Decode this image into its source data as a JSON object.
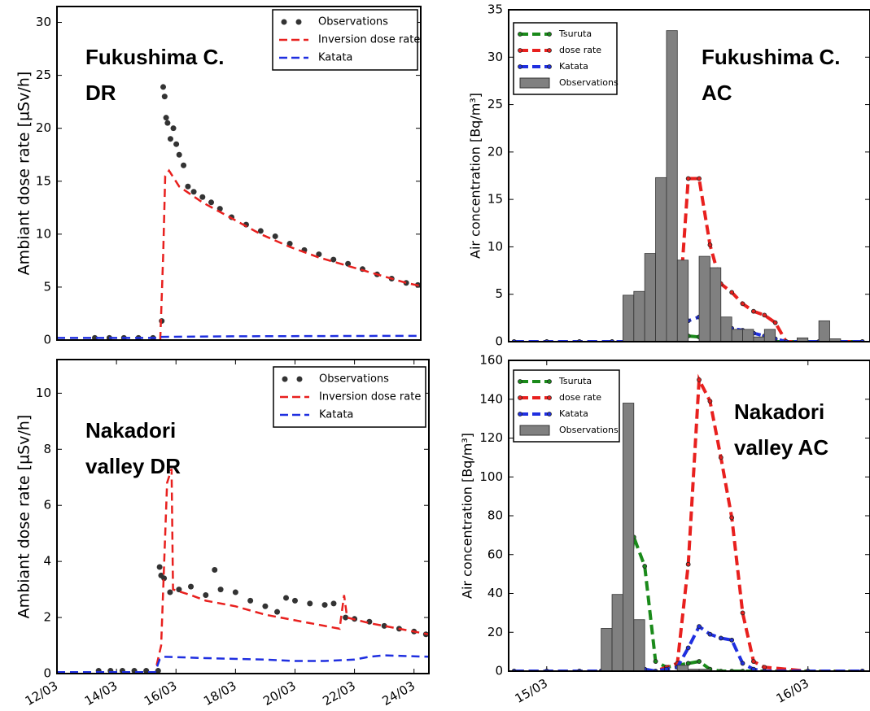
{
  "chart_data": [
    {
      "type": "line",
      "annotation": [
        "Fukushima C.",
        "DR"
      ],
      "y_label": "Ambiant dose rate [µSv/h]",
      "xlim": [
        12,
        24.5
      ],
      "ylim": [
        0,
        31.5
      ],
      "yticks": [
        0,
        5,
        10,
        15,
        20,
        25,
        30
      ],
      "legend": "upper right",
      "series": [
        {
          "name": "Observations",
          "kind": "scatter",
          "color": "#333333",
          "x": [
            13.3,
            13.8,
            14.3,
            14.8,
            15.3,
            15.6,
            15.65,
            15.7,
            15.75,
            15.8,
            15.9,
            16.0,
            16.1,
            16.2,
            16.35,
            16.5,
            16.7,
            17.0,
            17.3,
            17.6,
            18.0,
            18.5,
            19.0,
            19.5,
            20.0,
            20.5,
            21.0,
            21.5,
            22.0,
            22.5,
            23.0,
            23.5,
            24.0,
            24.4
          ],
          "values": [
            0.2,
            0.2,
            0.2,
            0.2,
            0.2,
            1.8,
            23.9,
            23.0,
            21.0,
            20.5,
            19.0,
            20.0,
            18.5,
            17.5,
            16.5,
            14.5,
            14.0,
            13.5,
            13.0,
            12.4,
            11.6,
            10.9,
            10.3,
            9.8,
            9.1,
            8.5,
            8.1,
            7.6,
            7.2,
            6.7,
            6.2,
            5.8,
            5.4,
            5.2
          ]
        },
        {
          "name": "Inversion dose rate",
          "kind": "line",
          "color": "#e8201e",
          "x": [
            15.55,
            15.65,
            15.72,
            15.85,
            16.2,
            17,
            18,
            19,
            20,
            21,
            22,
            23,
            24,
            24.5
          ],
          "values": [
            0,
            8,
            15.5,
            16,
            14.5,
            13,
            11.5,
            10,
            8.8,
            7.8,
            7,
            6.2,
            5.4,
            5.1
          ]
        },
        {
          "name": "Katata",
          "kind": "line",
          "color": "#1f2fe0",
          "x": [
            12,
            15.5,
            15.6,
            18,
            24.5
          ],
          "values": [
            0.2,
            0.2,
            0.3,
            0.35,
            0.4
          ]
        }
      ]
    },
    {
      "type": "bar",
      "annotation": [
        "Fukushima C.",
        "AC"
      ],
      "y_label": "Air concentration [Bq/m³]",
      "xlim": [
        -3.5,
        29.7
      ],
      "ylim": [
        0,
        35
      ],
      "yticks": [
        0,
        5,
        10,
        15,
        20,
        25,
        30,
        35
      ],
      "legend": "upper left",
      "series": [
        {
          "name": "Tsuruta",
          "kind": "line",
          "markers": true,
          "color": "#1a8a1a",
          "x": [
            -3,
            0,
            3,
            6,
            9,
            10,
            11,
            12,
            13,
            14,
            15,
            16,
            17,
            18,
            19,
            20,
            21,
            22,
            25,
            29
          ],
          "values": [
            0,
            0,
            0,
            0,
            0,
            0,
            0.1,
            0.5,
            0.6,
            0.5,
            0.4,
            0.5,
            0.4,
            0.3,
            0.2,
            0.1,
            0,
            0,
            0,
            0
          ]
        },
        {
          "name": "dose rate",
          "kind": "line",
          "markers": true,
          "color": "#e8201e",
          "x": [
            -3,
            0,
            3,
            6,
            9,
            10,
            11,
            12,
            13,
            14,
            15,
            16,
            17,
            18,
            19,
            20,
            21,
            22,
            25,
            29
          ],
          "values": [
            0,
            0,
            0,
            0,
            0,
            0,
            0,
            0.5,
            17.2,
            17.2,
            10.2,
            6.1,
            5.2,
            4.0,
            3.2,
            2.8,
            2.0,
            0,
            0,
            0
          ]
        },
        {
          "name": "Katata",
          "kind": "line",
          "markers": true,
          "color": "#1f2fe0",
          "x": [
            -3,
            0,
            3,
            6,
            9,
            10,
            11,
            12,
            13,
            14,
            15,
            16,
            17,
            18,
            19,
            20,
            21,
            22,
            25,
            29
          ],
          "values": [
            0,
            0,
            0,
            0,
            0,
            0,
            0,
            1.2,
            2.2,
            2.6,
            2.0,
            1.5,
            1.4,
            1.2,
            0.9,
            0.6,
            0.3,
            0,
            0,
            0
          ]
        },
        {
          "name": "Observations",
          "kind": "bar",
          "color": "#808080",
          "bins": [
            7,
            8,
            9,
            10,
            11,
            12,
            13,
            14,
            15,
            16,
            17,
            18,
            19,
            20,
            21,
            22,
            23,
            24,
            25,
            26,
            27
          ],
          "values": [
            4.9,
            5.3,
            9.3,
            17.3,
            32.8,
            8.6,
            0,
            9.0,
            7.8,
            2.6,
            1.3,
            1.3,
            0.5,
            1.3,
            0,
            0,
            0.4,
            0,
            2.2,
            0.3
          ]
        }
      ]
    },
    {
      "type": "line",
      "annotation": [
        "Nakadori",
        "valley DR"
      ],
      "y_label": "Ambiant dose rate [µSv/h]",
      "xlim": [
        12,
        24.5
      ],
      "ylim": [
        0,
        11.2
      ],
      "yticks": [
        0,
        2,
        4,
        6,
        8,
        10
      ],
      "legend": "upper right",
      "xticks": [
        {
          "value": 12,
          "label": "12/03"
        },
        {
          "value": 14,
          "label": "14/03"
        },
        {
          "value": 16,
          "label": "16/03"
        },
        {
          "value": 18,
          "label": "18/03"
        },
        {
          "value": 20,
          "label": "20/03"
        },
        {
          "value": 22,
          "label": "22/03"
        },
        {
          "value": 24,
          "label": "24/03"
        }
      ],
      "series": [
        {
          "name": "Observations",
          "kind": "scatter",
          "color": "#333333",
          "x": [
            13.4,
            13.8,
            14.2,
            14.6,
            15.0,
            15.4,
            15.45,
            15.5,
            15.6,
            15.8,
            16.1,
            16.5,
            17.0,
            17.3,
            17.5,
            18.0,
            18.5,
            19.0,
            19.4,
            19.7,
            20.0,
            20.5,
            21.0,
            21.3,
            21.7,
            22.0,
            22.5,
            23.0,
            23.5,
            24.0,
            24.4
          ],
          "values": [
            0.1,
            0.1,
            0.1,
            0.1,
            0.1,
            0.1,
            3.8,
            3.5,
            3.4,
            2.9,
            3.0,
            3.1,
            2.8,
            3.7,
            3.0,
            2.9,
            2.6,
            2.4,
            2.2,
            2.7,
            2.6,
            2.5,
            2.45,
            2.5,
            2.0,
            1.95,
            1.85,
            1.7,
            1.6,
            1.5,
            1.4
          ]
        },
        {
          "name": "Inversion dose rate",
          "kind": "line",
          "color": "#e8201e",
          "x": [
            15.35,
            15.5,
            15.7,
            15.85,
            15.9,
            16.5,
            17,
            18,
            19,
            20,
            21,
            21.5,
            21.65,
            21.75,
            22.5,
            23.5,
            24.5
          ],
          "values": [
            0.3,
            1.0,
            6.8,
            7.3,
            3.0,
            2.8,
            2.6,
            2.4,
            2.1,
            1.9,
            1.7,
            1.6,
            2.8,
            2.0,
            1.8,
            1.6,
            1.4
          ]
        },
        {
          "name": "Katata",
          "kind": "line",
          "color": "#1f2fe0",
          "x": [
            12,
            15.3,
            15.45,
            15.6,
            17,
            19,
            20,
            21,
            22,
            22.5,
            23,
            24.5
          ],
          "values": [
            0.05,
            0.05,
            0.5,
            0.6,
            0.55,
            0.5,
            0.45,
            0.45,
            0.5,
            0.6,
            0.65,
            0.6
          ]
        }
      ]
    },
    {
      "type": "bar",
      "annotation": [
        "Nakadori",
        "valley AC"
      ],
      "y_label": "Air concentration [Bq/m³]",
      "xlim": [
        -3.5,
        29.7
      ],
      "ylim": [
        0,
        160
      ],
      "yticks": [
        0,
        20,
        40,
        60,
        80,
        100,
        120,
        140,
        160
      ],
      "legend": "upper left",
      "xticks": [
        {
          "value": 0,
          "label": "15/03"
        },
        {
          "value": 24,
          "label": "16/03"
        }
      ],
      "series": [
        {
          "name": "Tsuruta",
          "kind": "line",
          "markers": true,
          "color": "#1a8a1a",
          "x": [
            -3,
            0,
            3,
            5,
            6,
            7,
            8,
            9,
            10,
            11,
            12,
            13,
            14,
            15,
            16,
            17,
            18,
            19,
            20,
            24,
            29
          ],
          "values": [
            0,
            0,
            0,
            0,
            1,
            20,
            69,
            54,
            5,
            2,
            3,
            4,
            5,
            1,
            0,
            0,
            0,
            0,
            0,
            0,
            0
          ]
        },
        {
          "name": "dose rate",
          "kind": "line",
          "markers": true,
          "color": "#e8201e",
          "x": [
            -3,
            0,
            3,
            5,
            6,
            7,
            8,
            9,
            10,
            11,
            12,
            13,
            14,
            15,
            16,
            17,
            18,
            19,
            20,
            24,
            29
          ],
          "values": [
            0,
            0,
            0,
            0,
            0,
            0,
            0,
            0,
            0,
            2,
            4,
            55,
            150,
            139,
            110,
            79,
            30,
            5,
            2,
            0,
            0
          ]
        },
        {
          "name": "Katata",
          "kind": "line",
          "markers": true,
          "color": "#1f2fe0",
          "x": [
            -3,
            0,
            3,
            5,
            6,
            7,
            8,
            9,
            10,
            11,
            12,
            13,
            14,
            15,
            16,
            17,
            18,
            19,
            20,
            24,
            29
          ],
          "values": [
            0,
            0,
            0,
            0,
            0,
            0.5,
            1,
            1,
            0,
            1,
            2,
            12,
            23,
            19,
            17,
            16,
            4,
            1,
            0,
            0,
            0
          ]
        },
        {
          "name": "Observations",
          "kind": "bar",
          "color": "#808080",
          "bins": [
            5,
            6,
            7,
            8,
            9,
            10,
            11,
            12,
            13,
            14,
            15
          ],
          "values": [
            22,
            39.5,
            138,
            26.5,
            0,
            0,
            0,
            3,
            1,
            1
          ]
        }
      ]
    }
  ]
}
